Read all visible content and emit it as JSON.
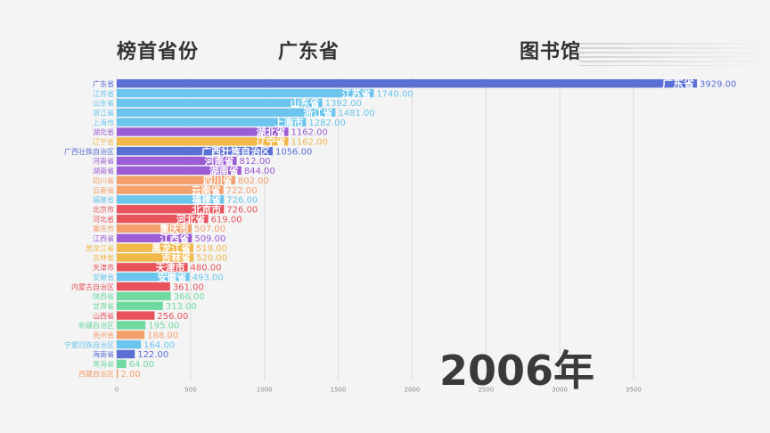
{
  "header": {
    "label": "榜首省份",
    "leader": "广东省",
    "topic": "图书馆"
  },
  "period_label": "2006年",
  "chart_data": {
    "type": "bar",
    "orientation": "horizontal",
    "title": "",
    "xlabel": "",
    "ylabel": "",
    "xlim": [
      0,
      4000
    ],
    "xticks": [
      "0",
      "500",
      "1000",
      "1500",
      "2000",
      "2500",
      "3000",
      "3500"
    ],
    "grid": true,
    "categories": [
      "广东省",
      "江苏省",
      "山东省",
      "浙江省",
      "上海市",
      "湖北省",
      "辽宁省",
      "广西壮族自治区",
      "河南省",
      "湖南省",
      "四川省",
      "云南省",
      "福建省",
      "北京市",
      "河北省",
      "重庆市",
      "江西省",
      "黑龙江省",
      "吉林省",
      "天津市",
      "安徽省",
      "内蒙古自治区",
      "陕西省",
      "甘肃省",
      "山西省",
      "新疆自治区",
      "贵州省",
      "宁夏回族自治区",
      "海南省",
      "青海省",
      "西藏自治区"
    ],
    "values": [
      3929,
      1740,
      1392,
      1481,
      1282,
      1162,
      1162,
      1056,
      812,
      844,
      802,
      722,
      726,
      726,
      619,
      507,
      509,
      519,
      520,
      480,
      493,
      361,
      366,
      313,
      256,
      195,
      188,
      164,
      122,
      64,
      2
    ],
    "value_labels": [
      "3929.00",
      "1740.00",
      "1392.00",
      "1481.00",
      "1282.00",
      "1162.00",
      "1162.00",
      "1056.00",
      "812.00",
      "844.00",
      "802.00",
      "722.00",
      "726.00",
      "726.00",
      "619.00",
      "507.00",
      "509.00",
      "519.00",
      "520.00",
      "480.00",
      "493.00",
      "361.00",
      "366.00",
      "313.00",
      "256.00",
      "195.00",
      "188.00",
      "164.00",
      "122.00",
      "64.00",
      "2.00"
    ],
    "colors": [
      "#5b6fd4",
      "#6cc5ec",
      "#6cc5ec",
      "#6cc5ec",
      "#6cc5ec",
      "#9c5dd4",
      "#f1b84a",
      "#5b6fd4",
      "#9c5dd4",
      "#9c5dd4",
      "#f3a06c",
      "#f3a06c",
      "#6cc5ec",
      "#e8535b",
      "#e8535b",
      "#f3a06c",
      "#9c5dd4",
      "#f1b84a",
      "#f1b84a",
      "#e8535b",
      "#6cc5ec",
      "#e8535b",
      "#6fd9a0",
      "#6fd9a0",
      "#e8535b",
      "#6fd9a0",
      "#f3a06c",
      "#6cc5ec",
      "#5b6fd4",
      "#6fd9a0",
      "#f3a06c"
    ]
  }
}
